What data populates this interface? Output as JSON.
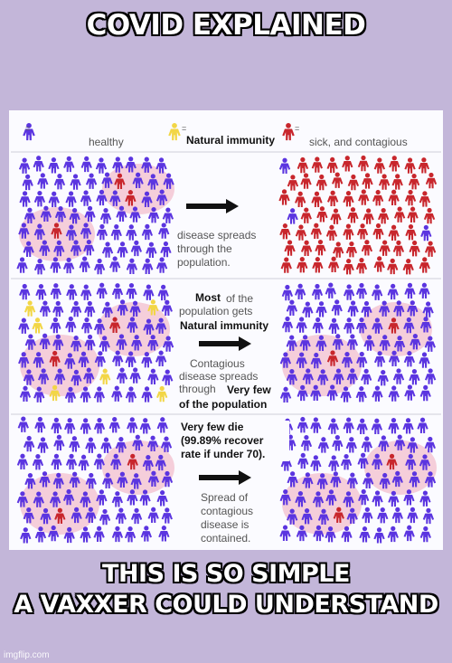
{
  "top_caption": "COVID EXPLAINED",
  "bottom_caption_line1": "THIS IS SO SIMPLE",
  "bottom_caption_line2": "A VAXXER COULD UNDERSTAND",
  "legend": {
    "healthy": "healthy",
    "natural_immunity": "Natural immunity",
    "sick": "sick, and contagious",
    "marker": "="
  },
  "row1": {
    "line1": "disease spreads",
    "line2": "through the",
    "line3": "population."
  },
  "row2": {
    "most": "Most",
    "of_the": "of the",
    "population_gets": "population gets",
    "natural_immunity": "Natural immunity",
    "contagious": "Contagious",
    "disease_spreads": "disease spreads",
    "through": "through",
    "very_few": "Very few",
    "of_the_population": "of the population"
  },
  "row3": {
    "die_line1": "Very few die",
    "die_line2": "(99.89% recover",
    "die_line3": "rate if under 70).",
    "spread_line1": "Spread of",
    "spread_line2": "contagious",
    "spread_line3": "disease is",
    "spread_line4": "contained."
  },
  "watermark": "imgflip.com",
  "colors": {
    "background": "#c3b6d9",
    "healthy": "#5b35e0",
    "sick": "#c8262c",
    "immune": "#f2d646",
    "infection_zone": "#f3c6d3"
  }
}
